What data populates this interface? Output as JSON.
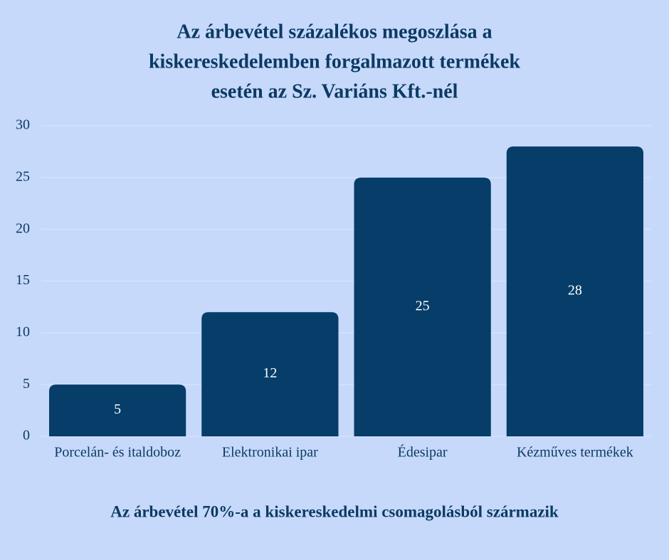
{
  "chart_data": {
    "type": "bar",
    "title": [
      "Az árbevétel százalékos megoszlása a",
      "kiskereskedelemben forgalmazott termékek",
      "esetén az Sz. Variáns Kft.-nél"
    ],
    "categories": [
      "Porcelán- és italdoboz",
      "Elektronikai ipar",
      "Édesipar",
      "Kézműves termékek"
    ],
    "values": [
      5,
      12,
      25,
      28
    ],
    "color": "#063d69",
    "ylim": [
      0,
      30
    ],
    "yticks": [
      0,
      5,
      10,
      15,
      20,
      25,
      30
    ],
    "grid": true,
    "annotation": "Az árbevétel 70%-a a kiskereskedelmi csomagolásból származik"
  }
}
